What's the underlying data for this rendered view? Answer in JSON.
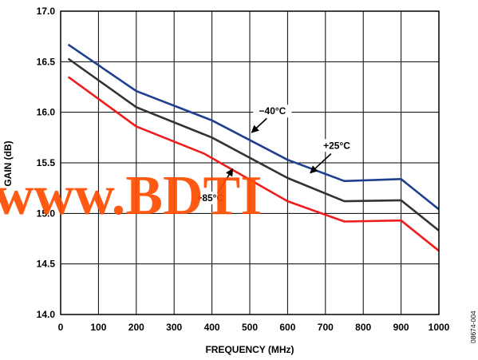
{
  "chart_data": {
    "type": "line",
    "title": "",
    "xlabel": "FREQUENCY (MHz)",
    "ylabel": "GAIN (dB)",
    "xlim": [
      0,
      1000
    ],
    "ylim": [
      14.0,
      17.0
    ],
    "x_ticks": [
      "0",
      "100",
      "200",
      "300",
      "400",
      "500",
      "600",
      "700",
      "800",
      "900",
      "1000"
    ],
    "y_ticks": [
      "14.0",
      "14.5",
      "15.0",
      "15.5",
      "16.0",
      "16.5",
      "17.0"
    ],
    "grid": true,
    "series": [
      {
        "name": "−40°C",
        "color": "#1f3f8f",
        "points": [
          [
            20,
            16.67
          ],
          [
            200,
            16.21
          ],
          [
            400,
            15.92
          ],
          [
            600,
            15.53
          ],
          [
            750,
            15.32
          ],
          [
            900,
            15.34
          ],
          [
            1000,
            15.04
          ]
        ]
      },
      {
        "name": "+25°C",
        "color": "#333333",
        "points": [
          [
            20,
            16.53
          ],
          [
            200,
            16.05
          ],
          [
            400,
            15.75
          ],
          [
            600,
            15.35
          ],
          [
            750,
            15.12
          ],
          [
            900,
            15.13
          ],
          [
            1000,
            14.83
          ]
        ]
      },
      {
        "name": "+85°C",
        "color": "#ee1c1c",
        "points": [
          [
            20,
            16.35
          ],
          [
            200,
            15.86
          ],
          [
            380,
            15.59
          ],
          [
            600,
            15.12
          ],
          [
            750,
            14.92
          ],
          [
            900,
            14.93
          ],
          [
            1000,
            14.63
          ]
        ]
      }
    ],
    "annotations": [
      {
        "label": "−40°C",
        "series": "−40°C",
        "text_x": 560,
        "text_y": 15.98,
        "arrow_from": [
          545,
          15.94
        ],
        "arrow_to": [
          505,
          15.8
        ]
      },
      {
        "label": "+25°C",
        "series": "+25°C",
        "text_x": 730,
        "text_y": 15.64,
        "arrow_from": [
          715,
          15.59
        ],
        "arrow_to": [
          660,
          15.4
        ]
      },
      {
        "label": "+85°C",
        "series": "+85°C",
        "text_x": 395,
        "text_y": 15.12,
        "arrow_from": [
          415,
          15.2
        ],
        "arrow_to": [
          455,
          15.44
        ]
      }
    ],
    "watermark": "www.BDTI",
    "figure_id": "08674-004"
  }
}
